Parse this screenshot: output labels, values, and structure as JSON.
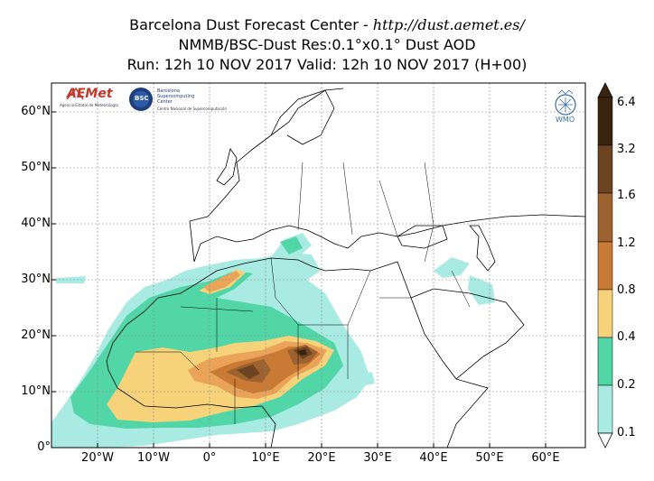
{
  "header": {
    "title_prefix": "Barcelona Dust Forecast Center - ",
    "title_url": "http://dust.aemet.es/",
    "model_line": "NMMB/BSC-Dust   Res:0.1°x0.1°   Dust AOD",
    "run_line": "Run: 12h 10 NOV 2017   Valid: 12h 10 NOV 2017 (H+00)"
  },
  "axes": {
    "lat_labels": [
      "60°N",
      "50°N",
      "40°N",
      "30°N",
      "20°N",
      "10°N",
      "0°"
    ],
    "lon_labels": [
      "20°W",
      "10°W",
      "0°",
      "10°E",
      "20°E",
      "30°E",
      "40°E",
      "50°E",
      "60°E"
    ]
  },
  "colorbar": {
    "labels": [
      "6.4",
      "3.2",
      "1.6",
      "1.2",
      "0.8",
      "0.4",
      "0.2",
      "0.1"
    ],
    "colors": [
      "#3a2410",
      "#6b4421",
      "#9c6330",
      "#c97a34",
      "#e9a45a",
      "#f6d27a",
      "#52d6a7",
      "#a9ebe2"
    ]
  },
  "logos": {
    "aemet": "AEMet",
    "aemet_sub": "Agencia Estatal de Meteorología",
    "bsc": "BSC",
    "bsc_name": "Barcelona Supercomputing Center",
    "bsc_sub": "Centro Nacional de Supercomputación",
    "wmo": "WMO"
  }
}
